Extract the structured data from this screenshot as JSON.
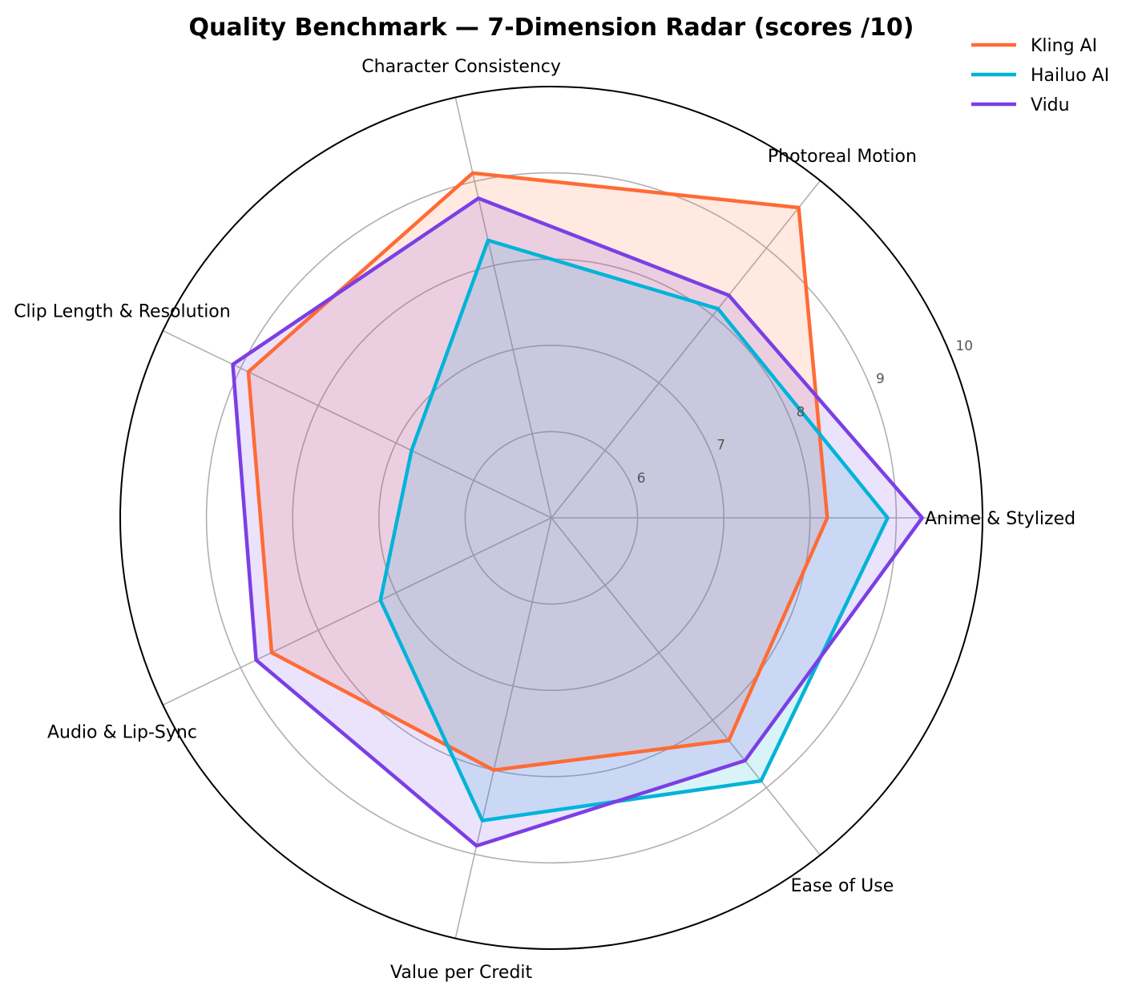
{
  "chart_data": {
    "type": "radar",
    "title": "Quality Benchmark — 7-Dimension Radar (scores /10)",
    "axes": [
      "Anime & Stylized",
      "Photoreal Motion",
      "Character Consistency",
      "Clip Length & Resolution",
      "Audio & Lip-Sync",
      "Value per Credit",
      "Ease of Use"
    ],
    "rlim": [
      5,
      10
    ],
    "rticks": [
      6,
      7,
      8,
      9,
      10
    ],
    "rtick_labels": [
      "6",
      "7",
      "8",
      "9",
      "10"
    ],
    "grid": true,
    "legend_position": "top-right",
    "series": [
      {
        "name": "Kling AI",
        "color": "#FF6B35",
        "values": [
          8.2,
          9.6,
          9.1,
          8.9,
          8.6,
          8.0,
          8.3
        ]
      },
      {
        "name": "Hailuo AI",
        "color": "#00B4D8",
        "values": [
          8.9,
          8.1,
          8.3,
          6.8,
          7.2,
          8.6,
          8.9
        ]
      },
      {
        "name": "Vidu",
        "color": "#7B3FE4",
        "values": [
          9.3,
          8.3,
          8.8,
          9.1,
          8.8,
          8.9,
          8.6
        ]
      }
    ]
  }
}
